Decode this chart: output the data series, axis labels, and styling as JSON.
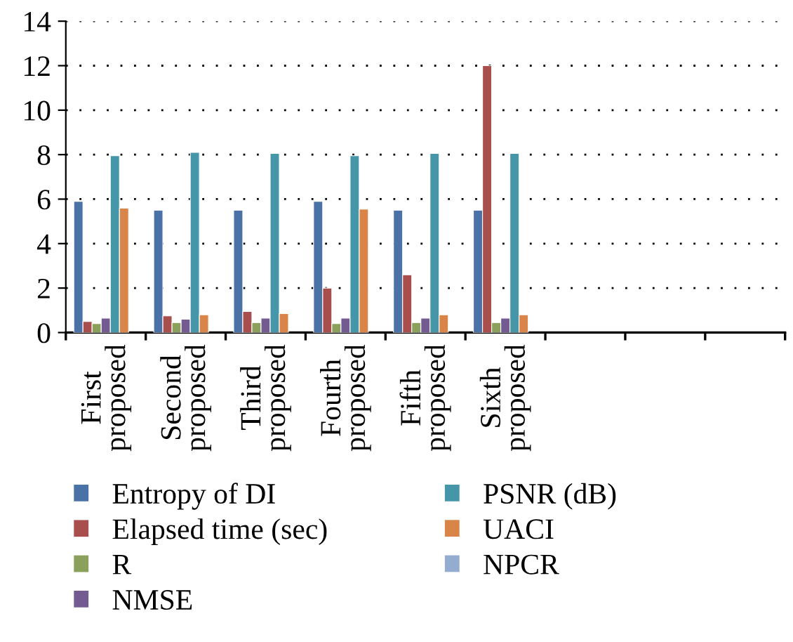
{
  "chart_data": {
    "type": "bar",
    "categories": [
      "First\nproposed",
      "Second\nproposed",
      "Third\nproposed",
      "Fourth\nproposed",
      "Fifth\nproposed",
      "Sixth\nproposed",
      null,
      null,
      null
    ],
    "series": [
      {
        "name": "Entropy of DI",
        "color": "#4a72a6",
        "values": [
          5.9,
          5.5,
          5.5,
          5.9,
          5.5,
          5.5,
          null,
          null,
          null
        ]
      },
      {
        "name": "Elapsed time (sec)",
        "color": "#a84e4c",
        "values": [
          0.5,
          0.75,
          0.95,
          2.0,
          2.6,
          12.0,
          null,
          null,
          null
        ]
      },
      {
        "name": "R",
        "color": "#8ba05a",
        "values": [
          0.4,
          0.45,
          0.45,
          0.4,
          0.45,
          0.45,
          null,
          null,
          null
        ]
      },
      {
        "name": "NMSE",
        "color": "#735b92",
        "values": [
          0.65,
          0.6,
          0.65,
          0.65,
          0.65,
          0.65,
          null,
          null,
          null
        ]
      },
      {
        "name": "PSNR (dB)",
        "color": "#4696aa",
        "values": [
          7.95,
          8.1,
          8.05,
          7.95,
          8.05,
          8.05,
          null,
          null,
          null
        ]
      },
      {
        "name": "UACI",
        "color": "#d9854a",
        "values": [
          5.6,
          0.8,
          0.85,
          5.55,
          0.8,
          0.8,
          null,
          null,
          null
        ]
      },
      {
        "name": "NPCR",
        "color": "#93acd0",
        "values": [
          null,
          null,
          null,
          null,
          null,
          null,
          null,
          null,
          null
        ]
      }
    ],
    "ylim": [
      0,
      14
    ],
    "yticks": [
      0,
      2,
      4,
      6,
      8,
      10,
      12,
      14
    ],
    "grid": "y",
    "legend": "bottom"
  }
}
